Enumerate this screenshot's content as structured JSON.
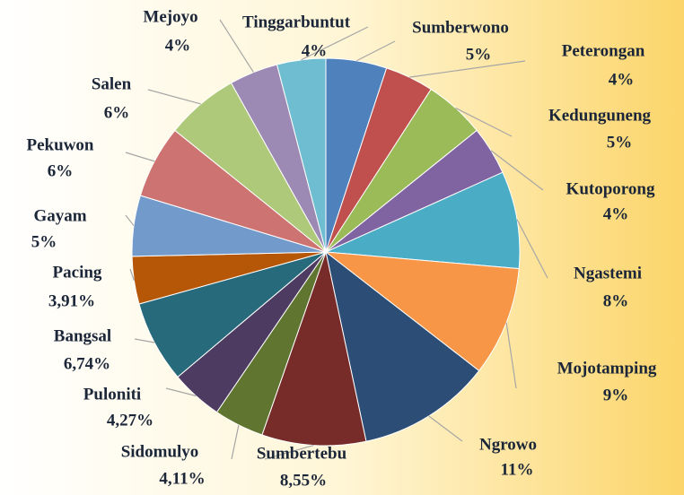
{
  "chart_data": {
    "type": "pie",
    "categories": [
      "Sumberwono",
      "Peterongan",
      "Kedunguneng",
      "Kutoporong",
      "Ngastemi",
      "Mojotamping",
      "Ngrowo",
      "Sumbertebu",
      "Sidomulyo",
      "Puloniti",
      "Bangsal",
      "Pacing",
      "Gayam",
      "Pekuwon",
      "Salen",
      "Mejoyo",
      "Tinggarbuntut"
    ],
    "values": [
      5,
      4,
      5,
      4,
      8,
      9,
      11,
      8.55,
      4.11,
      4.27,
      6.74,
      3.91,
      5,
      6,
      6,
      4,
      4
    ],
    "value_labels": [
      "5%",
      "4%",
      "5%",
      "4%",
      "8%",
      "9%",
      "11%",
      "8,55%",
      "4,11%",
      "4,27%",
      "6,74%",
      "3,91%",
      "5%",
      "6%",
      "6%",
      "4%",
      "4%"
    ],
    "colors": [
      "#4f81bd",
      "#c0504d",
      "#9bbb59",
      "#8064a2",
      "#4bacc6",
      "#f79646",
      "#2c4d75",
      "#772c2a",
      "#5f7530",
      "#4d3b62",
      "#276a7c",
      "#b65708",
      "#729aca",
      "#cd7371",
      "#afc97a",
      "#9c8ab4",
      "#6fbdd1"
    ]
  }
}
